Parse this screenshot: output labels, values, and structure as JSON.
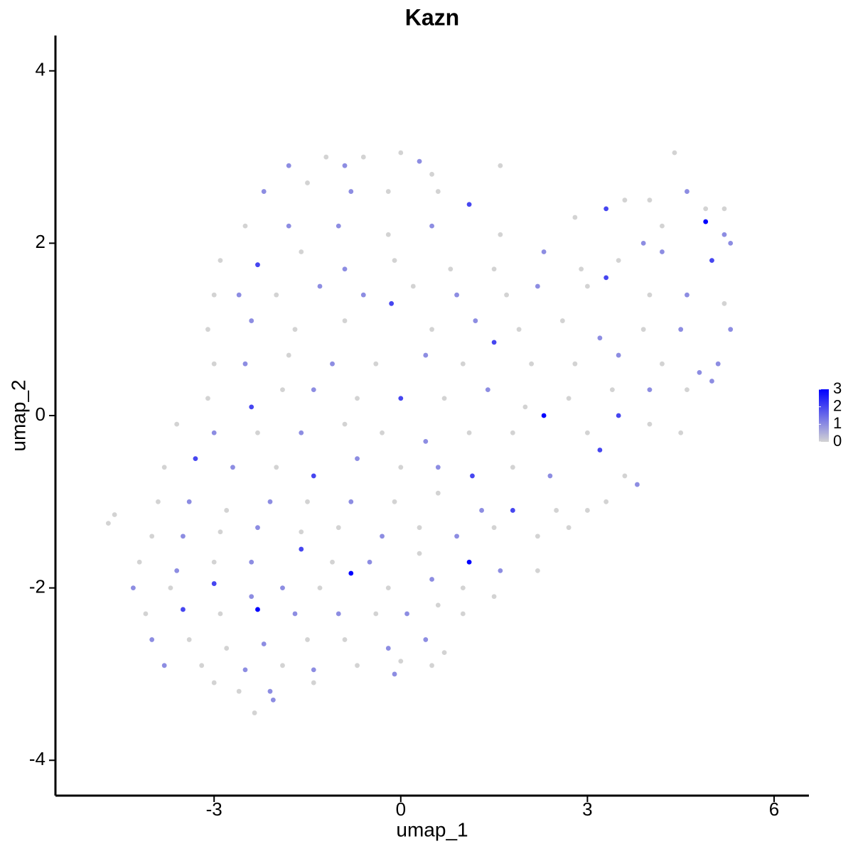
{
  "chart_data": {
    "type": "scatter",
    "title": "Kazn",
    "x_label": "umap_1",
    "y_label": "umap_2",
    "xlim": [
      -5.55,
      6.56
    ],
    "ylim": [
      -4.41,
      4.41
    ],
    "xticks": [
      -3,
      0,
      3,
      6
    ],
    "yticks": [
      -4,
      -2,
      0,
      2,
      4
    ],
    "color_low": "#d3d3d3",
    "color_high": "#0000ff",
    "colorbar_lim": [
      0,
      3
    ],
    "colorbar_ticks": [
      0,
      1,
      2,
      3
    ],
    "x": [
      -1.2,
      -0.6,
      0,
      0.3,
      -0.9,
      0.5,
      4.4,
      -1.8,
      -2.2,
      -1.5,
      -0.8,
      -0.2,
      0.6,
      1.1,
      1.6,
      4.0,
      4.6,
      4.9,
      5.2,
      3.6,
      -2.5,
      -1.8,
      -1.0,
      -0.2,
      0.5,
      1.6,
      2.8,
      3.3,
      4.9,
      5.2,
      4.2,
      3.9,
      -2.9,
      -2.3,
      -1.6,
      -0.9,
      -0.1,
      0.8,
      1.5,
      2.3,
      2.9,
      3.5,
      4.2,
      5.0,
      5.3,
      -3.0,
      -2.6,
      -2.0,
      -1.3,
      -0.6,
      0.2,
      0.9,
      1.7,
      2.2,
      3.0,
      3.3,
      4.0,
      4.6,
      5.2,
      -3.1,
      -2.4,
      -1.7,
      -0.9,
      -0.15,
      0.5,
      1.2,
      1.9,
      2.6,
      3.2,
      3.9,
      4.5,
      5.3,
      -3.0,
      -2.5,
      -1.8,
      -1.1,
      -0.4,
      0.4,
      1.0,
      1.5,
      2.1,
      2.8,
      3.5,
      4.2,
      4.8,
      5.1,
      -3.1,
      -2.4,
      -1.9,
      -1.4,
      -0.7,
      0,
      0.7,
      1.4,
      2.0,
      2.7,
      3.4,
      4.0,
      4.6,
      5.0,
      -3.6,
      -3.0,
      -2.3,
      -1.6,
      -0.9,
      -0.3,
      0.4,
      1.1,
      1.8,
      2.3,
      3.0,
      3.5,
      4.0,
      4.5,
      -3.8,
      -3.3,
      -2.7,
      -2.0,
      -1.4,
      -0.7,
      0,
      0.6,
      1.15,
      1.8,
      2.4,
      3.2,
      3.6,
      3.8,
      -3.9,
      -3.4,
      -2.8,
      -2.1,
      -1.5,
      -0.8,
      -0.1,
      0.6,
      1.3,
      1.8,
      2.5,
      3.0,
      3.3,
      -4.7,
      -4.6,
      -4.0,
      -3.5,
      -2.9,
      -2.3,
      -1.6,
      -1.0,
      -0.3,
      0.3,
      0.9,
      1.5,
      2.2,
      2.7,
      -4.2,
      -3.6,
      -3.0,
      -2.4,
      -1.6,
      -1.1,
      -0.5,
      0.3,
      1.1,
      1.6,
      2.2,
      -4.3,
      -3.7,
      -3.0,
      -2.4,
      -1.9,
      -1.3,
      -0.8,
      -0.2,
      0.5,
      1.0,
      1.5,
      -4.1,
      -3.5,
      -2.9,
      -2.3,
      -1.7,
      -1.0,
      -0.4,
      0.1,
      0.6,
      1.0,
      -4.0,
      -3.4,
      -2.8,
      -2.2,
      -1.5,
      -0.9,
      -0.2,
      0.4,
      0.7,
      -3.8,
      -3.2,
      -2.5,
      -1.9,
      -1.4,
      -0.7,
      0.0,
      0.5,
      -3.0,
      -2.6,
      -2.1,
      -1.4,
      -0.1,
      -2.35,
      -2.05
    ],
    "y": [
      3.0,
      3.0,
      3.05,
      2.95,
      2.9,
      2.8,
      3.05,
      2.9,
      2.6,
      2.7,
      2.6,
      2.6,
      2.6,
      2.45,
      2.9,
      2.5,
      2.6,
      2.4,
      2.4,
      2.5,
      2.2,
      2.2,
      2.2,
      2.1,
      2.2,
      2.1,
      2.3,
      2.4,
      2.25,
      2.1,
      2.2,
      2.0,
      1.8,
      1.75,
      1.9,
      1.7,
      1.8,
      1.7,
      1.7,
      1.9,
      1.7,
      1.8,
      1.9,
      1.8,
      2.0,
      1.4,
      1.4,
      1.4,
      1.5,
      1.4,
      1.5,
      1.4,
      1.4,
      1.5,
      1.5,
      1.6,
      1.4,
      1.4,
      1.3,
      1.0,
      1.1,
      1.0,
      1.1,
      1.3,
      1.0,
      1.1,
      1.0,
      1.1,
      0.9,
      1.0,
      1.0,
      1.0,
      0.6,
      0.6,
      0.7,
      0.6,
      0.6,
      0.7,
      0.6,
      0.85,
      0.6,
      0.6,
      0.7,
      0.6,
      0.5,
      0.6,
      0.2,
      0.1,
      0.3,
      0.3,
      0.2,
      0.2,
      0.2,
      0.3,
      0.1,
      0.2,
      0.3,
      0.3,
      0.3,
      0.4,
      -0.1,
      -0.2,
      -0.2,
      -0.2,
      -0.1,
      -0.2,
      -0.3,
      -0.2,
      -0.2,
      0.0,
      -0.2,
      0.0,
      -0.1,
      -0.2,
      -0.6,
      -0.5,
      -0.6,
      -0.6,
      -0.7,
      -0.5,
      -0.6,
      -0.6,
      -0.7,
      -0.6,
      -0.7,
      -0.4,
      -0.7,
      -0.8,
      -1.0,
      -1.0,
      -1.1,
      -1.0,
      -1.0,
      -1.0,
      -1.0,
      -0.9,
      -1.1,
      -1.1,
      -1.1,
      -1.1,
      -1.0,
      -1.25,
      -1.15,
      -1.4,
      -1.4,
      -1.35,
      -1.3,
      -1.35,
      -1.3,
      -1.4,
      -1.3,
      -1.4,
      -1.3,
      -1.4,
      -1.3,
      -1.7,
      -1.8,
      -1.7,
      -1.7,
      -1.55,
      -1.7,
      -1.7,
      -1.6,
      -1.7,
      -1.8,
      -1.8,
      -2.0,
      -2.0,
      -1.95,
      -2.1,
      -2.0,
      -2.0,
      -1.83,
      -2.0,
      -1.9,
      -2.0,
      -2.1,
      -2.3,
      -2.25,
      -2.3,
      -2.25,
      -2.3,
      -2.3,
      -2.3,
      -2.3,
      -2.2,
      -2.3,
      -2.6,
      -2.6,
      -2.7,
      -2.65,
      -2.6,
      -2.6,
      -2.7,
      -2.6,
      -2.75,
      -2.9,
      -2.9,
      -2.95,
      -2.9,
      -2.95,
      -2.9,
      -2.85,
      -2.9,
      -3.1,
      -3.2,
      -3.2,
      -3.1,
      -3.0,
      -3.45,
      -3.3
    ],
    "values": [
      0,
      0,
      0,
      1,
      1,
      0,
      0,
      1,
      1,
      0,
      1,
      0,
      0,
      2,
      0,
      0,
      1,
      0,
      0,
      0,
      0,
      1,
      1,
      0,
      1,
      0,
      0,
      2,
      3,
      1,
      0,
      1,
      0,
      2,
      0,
      1,
      0,
      0,
      0,
      1,
      0,
      0,
      1,
      2,
      1,
      0,
      1,
      0,
      1,
      1,
      0,
      1,
      0,
      1,
      0,
      2,
      0,
      1,
      0,
      0,
      1,
      0,
      0,
      2,
      0,
      1,
      0,
      0,
      1,
      0,
      1,
      1,
      0,
      1,
      0,
      1,
      0,
      1,
      0,
      2,
      0,
      0,
      1,
      0,
      1,
      1,
      0,
      2,
      0,
      1,
      0,
      2,
      0,
      1,
      0,
      0,
      0,
      1,
      0,
      1,
      0,
      1,
      0,
      1,
      0,
      0,
      1,
      0,
      0,
      3,
      0,
      2,
      0,
      0,
      0,
      2,
      1,
      0,
      2,
      1,
      0,
      1,
      2,
      0,
      1,
      2,
      0,
      1,
      0,
      1,
      0,
      1,
      0,
      1,
      0,
      0,
      1,
      2,
      0,
      0,
      0,
      0,
      0,
      0,
      1,
      0,
      1,
      0,
      0,
      1,
      0,
      1,
      0,
      0,
      0,
      0,
      1,
      0,
      1,
      2,
      0,
      1,
      0,
      3,
      1,
      0,
      1,
      0,
      2,
      1,
      1,
      0,
      3,
      0,
      1,
      0,
      0,
      0,
      2,
      0,
      3,
      1,
      1,
      0,
      1,
      0,
      0,
      1,
      0,
      0,
      1,
      0,
      0,
      1,
      1,
      0,
      1,
      0,
      1,
      0,
      1,
      0,
      0,
      0,
      0,
      0,
      1,
      0,
      1,
      0,
      1
    ]
  }
}
